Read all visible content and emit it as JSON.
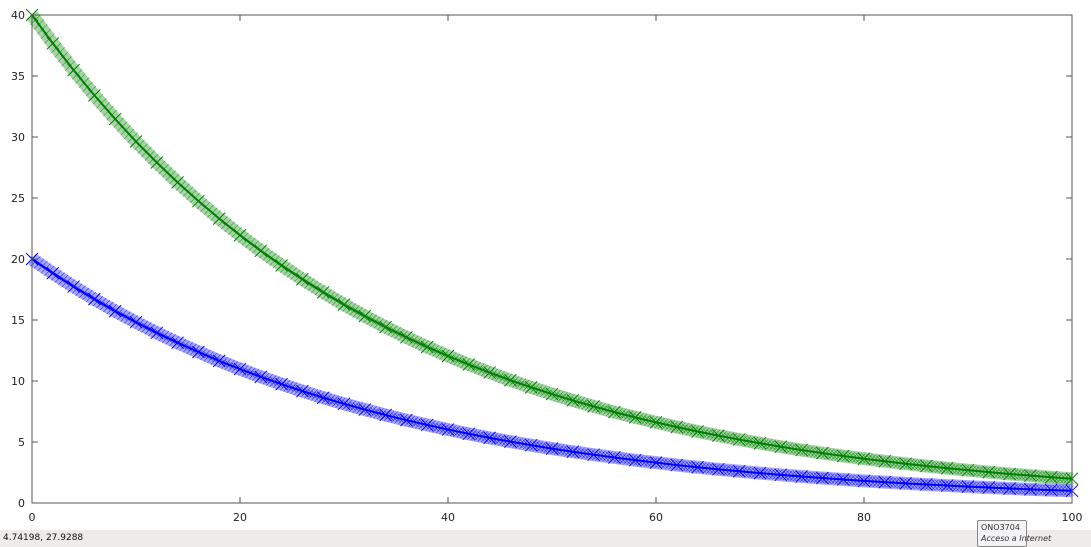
{
  "chart_data": {
    "type": "scatter",
    "title": "",
    "xlabel": "",
    "ylabel": "",
    "xlim": [
      0,
      100
    ],
    "ylim": [
      0,
      40
    ],
    "xticks": [
      "0",
      "20",
      "40",
      "60",
      "80",
      "100"
    ],
    "yticks": [
      "0",
      "5",
      "10",
      "15",
      "20",
      "25",
      "30",
      "35",
      "40"
    ],
    "grid": false,
    "marker": "x",
    "x": [
      0,
      2,
      4,
      6,
      8,
      10,
      12,
      14,
      16,
      18,
      20,
      22,
      24,
      26,
      28,
      30,
      32,
      34,
      36,
      38,
      40,
      42,
      44,
      46,
      48,
      50,
      52,
      54,
      56,
      58,
      60,
      62,
      64,
      66,
      68,
      70,
      72,
      74,
      76,
      78,
      80,
      82,
      84,
      86,
      88,
      90,
      92,
      94,
      96,
      98,
      100
    ],
    "series": [
      {
        "color": "#008000",
        "values": [
          40,
          37.67,
          35.48,
          33.41,
          31.47,
          29.63,
          27.91,
          26.28,
          24.75,
          23.31,
          21.95,
          20.67,
          19.47,
          18.34,
          17.27,
          16.26,
          15.32,
          14.42,
          13.58,
          12.79,
          12.05,
          11.35,
          10.69,
          10.06,
          9.48,
          8.93,
          8.41,
          7.92,
          7.45,
          7.02,
          6.61,
          6.23,
          5.86,
          5.52,
          5.2,
          4.9,
          4.61,
          4.34,
          4.09,
          3.85,
          3.63,
          3.42,
          3.22,
          3.03,
          2.85,
          2.69,
          2.53,
          2.38,
          2.25,
          2.11,
          1.99
        ]
      },
      {
        "color": "#0000ff",
        "values": [
          20,
          18.84,
          17.74,
          16.71,
          15.73,
          14.82,
          13.95,
          13.14,
          12.38,
          11.65,
          10.98,
          10.34,
          9.74,
          9.17,
          8.63,
          8.13,
          7.66,
          7.21,
          6.79,
          6.4,
          6.02,
          5.67,
          5.34,
          5.03,
          4.74,
          4.46,
          4.2,
          3.96,
          3.73,
          3.51,
          3.31,
          3.11,
          2.93,
          2.76,
          2.6,
          2.45,
          2.31,
          2.17,
          2.05,
          1.93,
          1.81,
          1.71,
          1.61,
          1.52,
          1.43,
          1.34,
          1.27,
          1.19,
          1.12,
          1.06,
          1.0
        ]
      }
    ]
  },
  "status": {
    "coordinates": "4.74198,  27.9288"
  },
  "tooltip": {
    "title": "ONO3704",
    "subtitle": "Acceso a Internet"
  }
}
